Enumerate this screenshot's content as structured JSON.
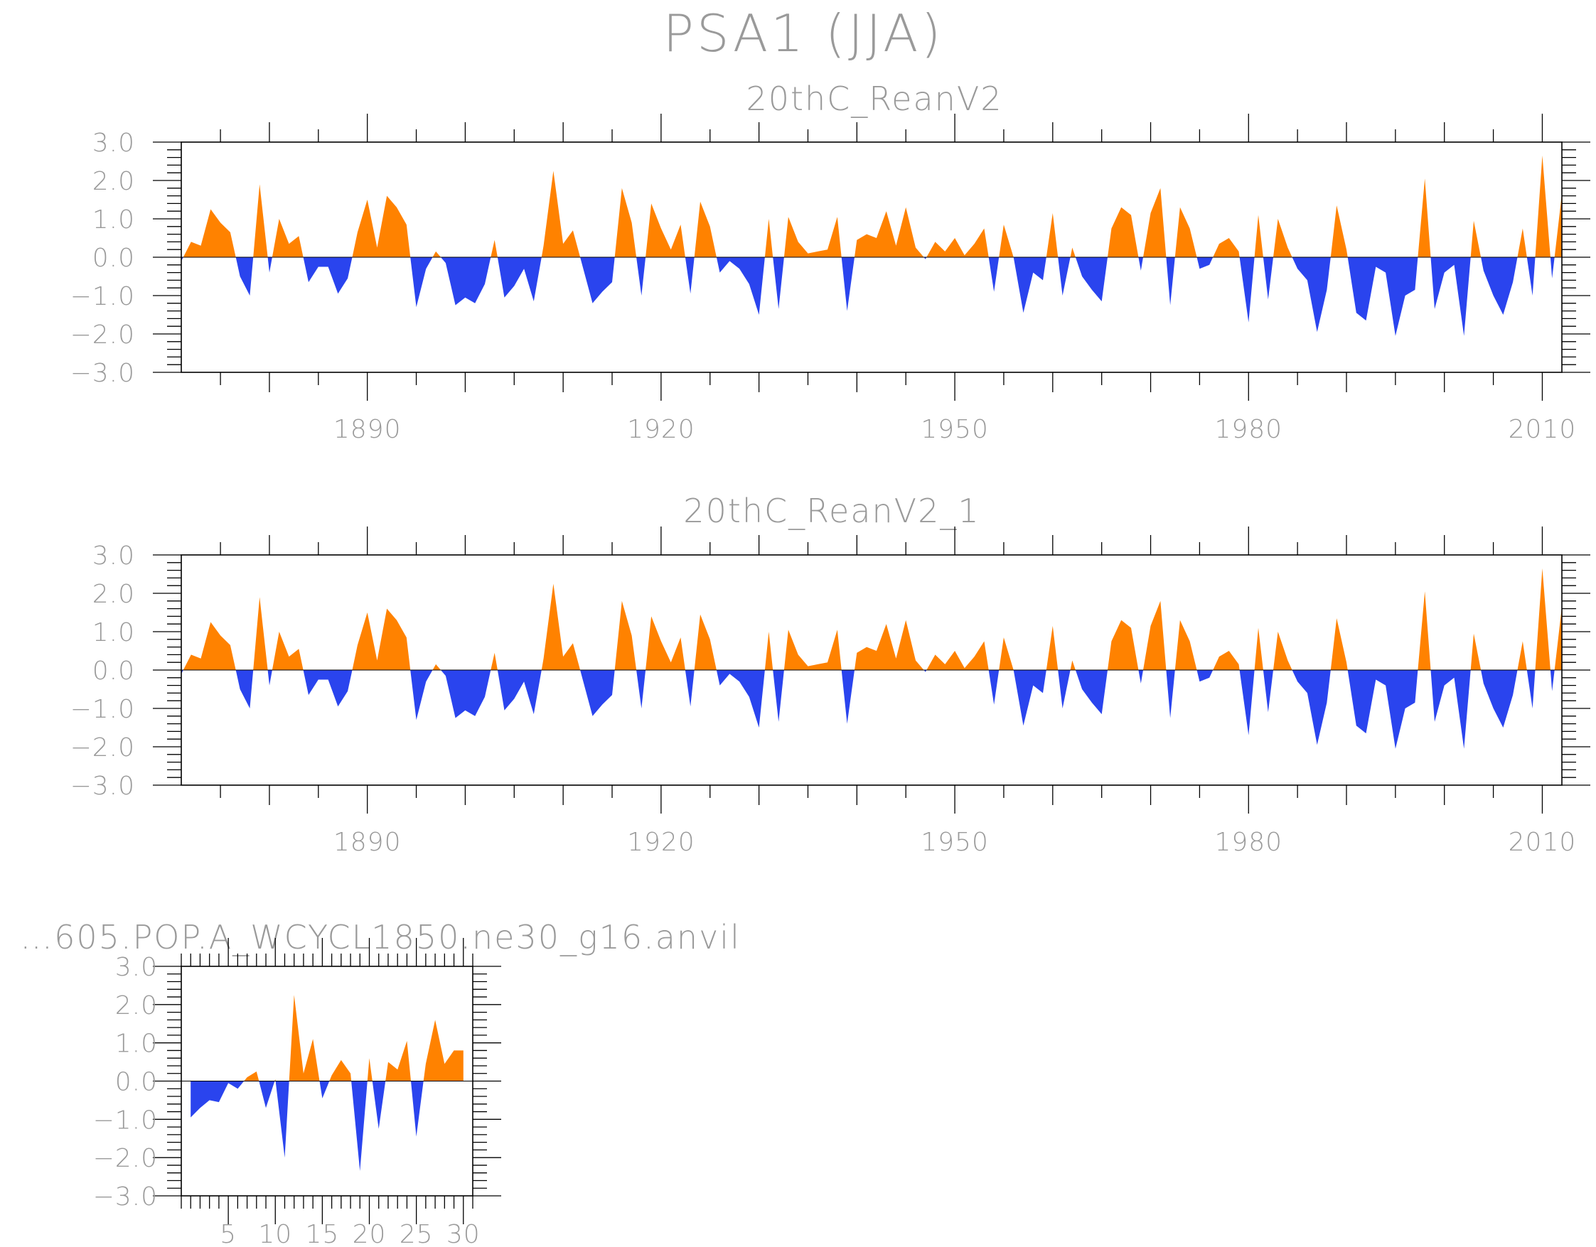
{
  "figure_title": "PSA1 (JJA)",
  "colors": {
    "positive": "#ff8200",
    "negative": "#2a44ee",
    "axis": "#000000",
    "text": "#9a9a9a"
  },
  "chart_data": [
    {
      "type": "area",
      "title": "20thC_ReanV2",
      "xlabel": "",
      "ylabel": "",
      "ylim": [
        -3,
        3
      ],
      "xlim": [
        1871,
        2012
      ],
      "yticks": [
        -3,
        -2,
        -1,
        0,
        1,
        2,
        3
      ],
      "ytick_labels": [
        "−3.0",
        "−2.0",
        "−1.0",
        "0.0",
        "1.0",
        "2.0",
        "3.0"
      ],
      "xticks": [
        1890,
        1920,
        1950,
        1980,
        2010
      ],
      "xtick_labels": [
        "1890",
        "1920",
        "1950",
        "1980",
        "2010"
      ],
      "x_start": 1871,
      "values": [
        -0.1,
        0.4,
        0.3,
        1.25,
        0.9,
        0.65,
        -0.5,
        -1.0,
        1.9,
        -0.4,
        1.0,
        0.35,
        0.55,
        -0.65,
        -0.25,
        -0.25,
        -0.95,
        -0.55,
        0.65,
        1.5,
        0.25,
        1.6,
        1.3,
        0.85,
        -1.3,
        -0.3,
        0.15,
        -0.15,
        -1.25,
        -1.05,
        -1.2,
        -0.7,
        0.45,
        -1.05,
        -0.75,
        -0.3,
        -1.15,
        0.3,
        2.25,
        0.35,
        0.7,
        -0.25,
        -1.2,
        -0.9,
        -0.65,
        1.8,
        0.9,
        -1.0,
        1.4,
        0.75,
        0.2,
        0.85,
        -0.95,
        1.45,
        0.8,
        -0.4,
        -0.1,
        -0.3,
        -0.7,
        -1.5,
        1.0,
        -1.35,
        1.05,
        0.4,
        0.1,
        0.15,
        0.2,
        1.05,
        -1.4,
        0.45,
        0.6,
        0.5,
        1.2,
        0.3,
        1.3,
        0.25,
        -0.05,
        0.4,
        0.15,
        0.5,
        0.05,
        0.35,
        0.75,
        -0.9,
        0.85,
        0.0,
        -1.45,
        -0.4,
        -0.6,
        1.15,
        -1.0,
        0.25,
        -0.5,
        -0.85,
        -1.15,
        0.75,
        1.3,
        1.1,
        -0.35,
        1.15,
        1.8,
        -1.25,
        1.3,
        0.75,
        -0.3,
        -0.2,
        0.35,
        0.5,
        0.15,
        -1.7,
        1.1,
        -1.1,
        1.0,
        0.25,
        -0.3,
        -0.6,
        -1.95,
        -0.85,
        1.35,
        0.2,
        -1.45,
        -1.65,
        -0.25,
        -0.4,
        -2.05,
        -1.0,
        -0.85,
        2.05,
        -1.35,
        -0.4,
        -0.2,
        -2.05,
        0.95,
        -0.35,
        -1.0,
        -1.5,
        -0.65,
        0.75,
        -1.0,
        2.65,
        -0.55,
        1.65
      ]
    },
    {
      "type": "area",
      "title": "20thC_ReanV2_1",
      "xlabel": "",
      "ylabel": "",
      "ylim": [
        -3,
        3
      ],
      "xlim": [
        1871,
        2012
      ],
      "yticks": [
        -3,
        -2,
        -1,
        0,
        1,
        2,
        3
      ],
      "ytick_labels": [
        "−3.0",
        "−2.0",
        "−1.0",
        "0.0",
        "1.0",
        "2.0",
        "3.0"
      ],
      "xticks": [
        1890,
        1920,
        1950,
        1980,
        2010
      ],
      "xtick_labels": [
        "1890",
        "1920",
        "1950",
        "1980",
        "2010"
      ],
      "x_start": 1871,
      "values": [
        -0.1,
        0.4,
        0.3,
        1.25,
        0.9,
        0.65,
        -0.5,
        -1.0,
        1.9,
        -0.4,
        1.0,
        0.35,
        0.55,
        -0.65,
        -0.25,
        -0.25,
        -0.95,
        -0.55,
        0.65,
        1.5,
        0.25,
        1.6,
        1.3,
        0.85,
        -1.3,
        -0.3,
        0.15,
        -0.15,
        -1.25,
        -1.05,
        -1.2,
        -0.7,
        0.45,
        -1.05,
        -0.75,
        -0.3,
        -1.15,
        0.3,
        2.25,
        0.35,
        0.7,
        -0.25,
        -1.2,
        -0.9,
        -0.65,
        1.8,
        0.9,
        -1.0,
        1.4,
        0.75,
        0.2,
        0.85,
        -0.95,
        1.45,
        0.8,
        -0.4,
        -0.1,
        -0.3,
        -0.7,
        -1.5,
        1.0,
        -1.35,
        1.05,
        0.4,
        0.1,
        0.15,
        0.2,
        1.05,
        -1.4,
        0.45,
        0.6,
        0.5,
        1.2,
        0.3,
        1.3,
        0.25,
        -0.05,
        0.4,
        0.15,
        0.5,
        0.05,
        0.35,
        0.75,
        -0.9,
        0.85,
        0.0,
        -1.45,
        -0.4,
        -0.6,
        1.15,
        -1.0,
        0.25,
        -0.5,
        -0.85,
        -1.15,
        0.75,
        1.3,
        1.1,
        -0.35,
        1.15,
        1.8,
        -1.25,
        1.3,
        0.75,
        -0.3,
        -0.2,
        0.35,
        0.5,
        0.15,
        -1.7,
        1.1,
        -1.1,
        1.0,
        0.25,
        -0.3,
        -0.6,
        -1.95,
        -0.85,
        1.35,
        0.2,
        -1.45,
        -1.65,
        -0.25,
        -0.4,
        -2.05,
        -1.0,
        -0.85,
        2.05,
        -1.35,
        -0.4,
        -0.2,
        -2.05,
        0.95,
        -0.35,
        -1.0,
        -1.5,
        -0.65,
        0.75,
        -1.0,
        2.65,
        -0.55,
        1.65
      ]
    },
    {
      "type": "area",
      "title": "…605.POP.A_WCYCL1850.ne30_g16.anvil",
      "xlabel": "",
      "ylabel": "",
      "ylim": [
        -3,
        3
      ],
      "xlim": [
        0,
        31
      ],
      "yticks": [
        -3,
        -2,
        -1,
        0,
        1,
        2,
        3
      ],
      "ytick_labels": [
        "−3.0",
        "−2.0",
        "−1.0",
        "0.0",
        "1.0",
        "2.0",
        "3.0"
      ],
      "xticks": [
        5,
        10,
        15,
        20,
        25,
        30
      ],
      "xtick_labels": [
        "5",
        "10",
        "15",
        "20",
        "25",
        "30"
      ],
      "x_start": 1,
      "values": [
        -0.95,
        -0.7,
        -0.5,
        -0.55,
        -0.05,
        -0.2,
        0.1,
        0.25,
        -0.7,
        0.05,
        -2.0,
        2.25,
        0.2,
        1.1,
        -0.45,
        0.15,
        0.55,
        0.2,
        -2.35,
        0.6,
        -1.25,
        0.5,
        0.3,
        1.05,
        -1.45,
        0.45,
        1.6,
        0.45,
        0.8,
        0.8
      ]
    }
  ]
}
